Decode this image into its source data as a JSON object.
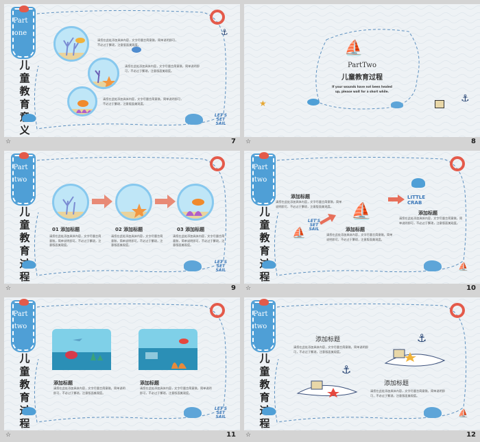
{
  "slides": [
    {
      "number": "7",
      "tag_line1": "Part",
      "tag_line2": "one",
      "vertical_title": "儿童教育意义",
      "paragraphs": [
        "请您在此处添加具体内容，文字尽量言简意赅，简单说明即可，不必过于繁琐，注意版面美观度。",
        "请您在此处添加具体内容，文字尽量言简意赅，简单说明即可，不必过于繁琐，注意版面美观度。",
        "请您在此处添加具体内容，文字尽量言简意赅，简单说明即可，不必过于繁琐，注意版面美观度。"
      ],
      "sail_lines": [
        "LET'S",
        "SET",
        "SAIL"
      ]
    },
    {
      "number": "8",
      "title": "PartTwo",
      "subtitle": "儿童教育过程",
      "body": "If your wounds have not been healed up, please wait for a short while."
    },
    {
      "number": "9",
      "tag_line1": "Part",
      "tag_line2": "two",
      "vertical_title": "儿童教育过程",
      "steps": [
        {
          "label": "01 添加标题",
          "text": "请您在此处添加具体内容，文字尽量言简意赅，简单说明即可，不必过于繁琐，注意版面美观度。"
        },
        {
          "label": "02 添加标题",
          "text": "请您在此处添加具体内容，文字尽量言简意赅，简单说明即可，不必过于繁琐，注意版面美观度。"
        },
        {
          "label": "03 添加标题",
          "text": "请您在此处添加具体内容，文字尽量言简意赅，简单说明即可，不必过于繁琐，注意版面美观度。"
        }
      ],
      "sail_lines": [
        "LET'S",
        "SET",
        "SAIL"
      ]
    },
    {
      "number": "10",
      "tag_line1": "Part",
      "tag_line2": "two",
      "vertical_title": "儿童教育过程",
      "blocks": [
        {
          "label": "添加标题",
          "text": "请您在此处添加具体内容，文字尽量言简意赅，简单说明即可，不必过于繁琐，注意版面美观度。"
        },
        {
          "label": "添加标题",
          "text": "请您在此处添加具体内容，文字尽量言简意赅，简单说明即可，不必过于繁琐，注意版面美观度。"
        },
        {
          "label": "添加标题",
          "text": "请您在此处添加具体内容，文字尽量言简意赅，简单说明即可，不必过于繁琐，注意版面美观度。"
        }
      ],
      "crab_lines": [
        "LITTLE",
        "CRAB"
      ],
      "sail_lines": [
        "LET'S",
        "SET",
        "SAIL"
      ]
    },
    {
      "number": "11",
      "tag_line1": "Part",
      "tag_line2": "two",
      "vertical_title": "儿童教育过程",
      "blocks": [
        {
          "label": "添加标题",
          "text": "请您在此处添加具体内容，文字尽量言简意赅，简单说明即可，不必过于繁琐，注意版面美观度。"
        },
        {
          "label": "添加标题",
          "text": "请您在此处添加具体内容，文字尽量言简意赅，简单说明即可，不必过于繁琐，注意版面美观度。"
        }
      ],
      "sail_lines": [
        "LET'S",
        "SET",
        "SAIL"
      ]
    },
    {
      "number": "12",
      "tag_line1": "Part",
      "tag_line2": "two",
      "vertical_title": "儿童教育过程",
      "blocks": [
        {
          "label": "添加标题",
          "text": "请您在此处添加具体内容，文字尽量言简意赅，简单说明即可，不必过于繁琐，注意版面美观度。"
        },
        {
          "label": "添加标题",
          "text": "请您在此处添加具体内容，文字尽量言简意赅，简单说明即可，不必过于繁琐，注意版面美观度。"
        }
      ]
    }
  ],
  "caption_icon": "star-icon",
  "colors": {
    "accent_blue": "#4f9fd6",
    "dash_blue": "#5b8fbf",
    "arrow_red": "#e76f5a",
    "sea": "#2b8fb6"
  }
}
